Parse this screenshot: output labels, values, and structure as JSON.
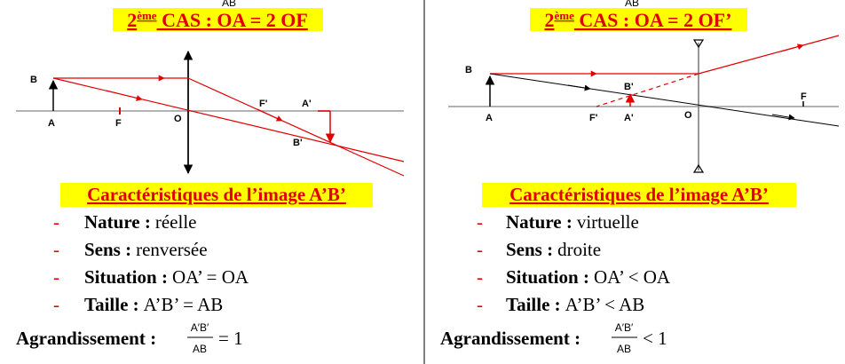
{
  "top_fragment": {
    "left": "AB",
    "right": "AB"
  },
  "panels": [
    {
      "title_num": "2",
      "title_sup": "ème",
      "title_main": " CAS : OA = 2 OF",
      "diagram_labels": [
        "B",
        "A",
        "F",
        "O",
        "F'",
        "A'",
        "B'"
      ],
      "heading": "Caractéristiques de l’image A’B’",
      "items": [
        {
          "label": "Nature :",
          "value": "réelle"
        },
        {
          "label": "Sens :",
          "value": "renversée"
        },
        {
          "label": "Situation :",
          "value": "OA’ = OA"
        },
        {
          "label": "Taille :",
          "value": "A’B’ = AB"
        }
      ],
      "magnification": {
        "label": "Agrandissement :",
        "numerator": "A′B′",
        "denominator": "AB",
        "relation": "= 1"
      }
    },
    {
      "title_num": "2",
      "title_sup": "ème",
      "title_main": " CAS : OA = 2 OF’",
      "diagram_labels": [
        "B",
        "B'",
        "A",
        "F'",
        "A'",
        "O",
        "F"
      ],
      "heading": "Caractéristiques de l’image A’B’",
      "items": [
        {
          "label": "Nature :",
          "value": "virtuelle"
        },
        {
          "label": "Sens :",
          "value": "droite"
        },
        {
          "label": "Situation :",
          "value": "OA’ < OA"
        },
        {
          "label": "Taille :",
          "value": "A’B’ < AB"
        }
      ],
      "magnification": {
        "label": "Agrandissement :",
        "numerator": "A′B′",
        "denominator": "AB",
        "relation": "< 1"
      }
    }
  ]
}
